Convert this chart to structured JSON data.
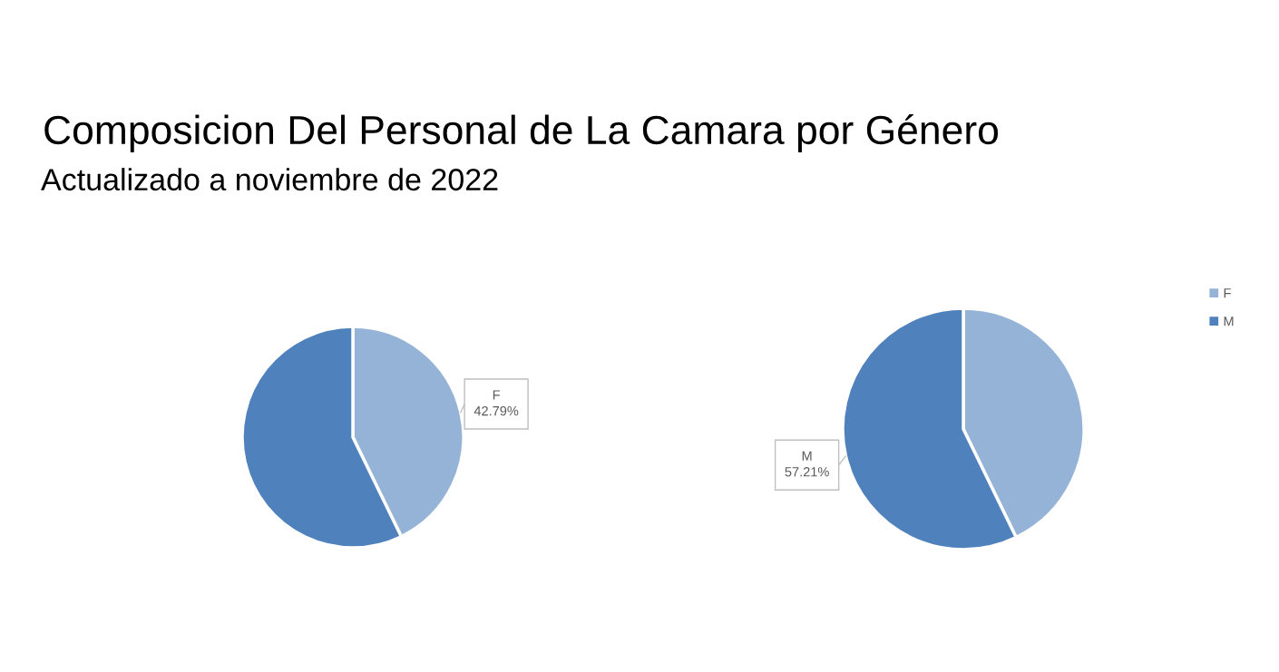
{
  "chart_data": [
    {
      "type": "pie",
      "title": "Composicion Del Personal de La Camara por Género",
      "subtitle": "Actualizado a noviembre de 2022",
      "categories": [
        "F",
        null
      ],
      "values": [
        42.79,
        57.21
      ],
      "colors": [
        "#95b3d7",
        "#4f81bd"
      ],
      "value_labels": [
        "42.79%",
        null
      ]
    },
    {
      "type": "pie",
      "categories": [
        "F",
        "M"
      ],
      "values": [
        42.79,
        57.21
      ],
      "colors": [
        "#95b3d7",
        "#4f81bd"
      ],
      "value_labels": [
        null,
        "57.21%"
      ],
      "legend": "top right"
    }
  ]
}
